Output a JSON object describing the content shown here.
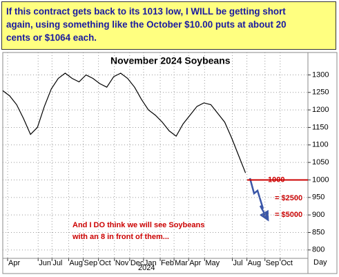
{
  "chart_data": {
    "type": "line",
    "title": "November 2024 Soybeans",
    "header_lines": [
      "If this contract gets back to its 1013 low, I WILL be getting short",
      "again, using something like the October $10.00 puts at about 20",
      "cents or $1064  each."
    ],
    "values": [
      1255,
      1240,
      1215,
      1175,
      1130,
      1150,
      1210,
      1260,
      1290,
      1305,
      1290,
      1280,
      1300,
      1290,
      1275,
      1265,
      1295,
      1305,
      1290,
      1265,
      1230,
      1200,
      1185,
      1165,
      1140,
      1125,
      1160,
      1185,
      1210,
      1220,
      1215,
      1190,
      1165,
      1120,
      1070,
      1020
    ],
    "color": "#000000",
    "xlim": [
      0,
      44
    ],
    "xticks": [
      {
        "value": 0.7,
        "label": "Apr"
      },
      {
        "value": 5.1,
        "label": "Jun"
      },
      {
        "value": 7.1,
        "label": "Jul"
      },
      {
        "value": 9.5,
        "label": "Aug"
      },
      {
        "value": 11.6,
        "label": "Sep"
      },
      {
        "value": 13.8,
        "label": "Oct"
      },
      {
        "value": 16.1,
        "label": "Nov"
      },
      {
        "value": 18.3,
        "label": "Dec"
      },
      {
        "value": 20.3,
        "label": "Jan"
      },
      {
        "value": 22.7,
        "label": "Feb"
      },
      {
        "value": 24.7,
        "label": "Mar"
      },
      {
        "value": 26.8,
        "label": "Apr"
      },
      {
        "value": 29.1,
        "label": "May"
      },
      {
        "value": 33.1,
        "label": "Jul"
      },
      {
        "value": 35.2,
        "label": "Aug"
      },
      {
        "value": 37.8,
        "label": "Sep"
      },
      {
        "value": 40,
        "label": "Oct"
      }
    ],
    "x_unit_label": "Day",
    "year_label": "2024",
    "ylim": [
      776,
      1364
    ],
    "yticks": [
      800,
      850,
      900,
      950,
      1000,
      1050,
      1100,
      1150,
      1200,
      1250,
      1300
    ],
    "grid": true,
    "hline": 1000,
    "hline_color": "#cc0000",
    "annotation_color": "#cc0000",
    "risk_labels": [
      "= $2500",
      "= $5000"
    ],
    "note_lines": [
      "And I DO think we will see Soybeans",
      "with an 8 in front of them..."
    ]
  }
}
